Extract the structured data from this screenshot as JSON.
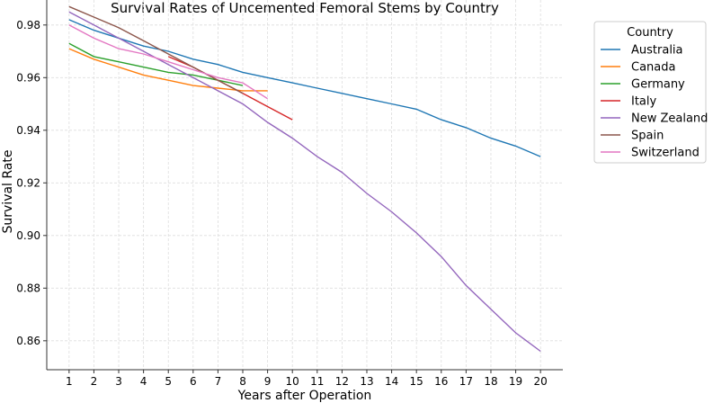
{
  "chart_data": {
    "type": "line",
    "title": "Survival Rates of Uncemented Femoral Stems by Country",
    "xlabel": "Years after Operation",
    "ylabel": "Survival Rate",
    "xlim": [
      0.1,
      20.9
    ],
    "ylim": [
      0.849,
      0.9895
    ],
    "xticks": [
      1,
      2,
      3,
      4,
      5,
      6,
      7,
      8,
      9,
      10,
      11,
      12,
      13,
      14,
      15,
      16,
      17,
      18,
      19,
      20
    ],
    "yticks": [
      0.86,
      0.88,
      0.9,
      0.92,
      0.94,
      0.96,
      0.98
    ],
    "ytick_labels": [
      "0.86",
      "0.88",
      "0.90",
      "0.92",
      "0.94",
      "0.96",
      "0.98"
    ],
    "grid": true,
    "legend_title": "Country",
    "legend_position": "outside-right",
    "series": [
      {
        "name": "Australia",
        "color": "#1f77b4",
        "x": [
          1,
          2,
          3,
          4,
          5,
          6,
          7,
          8,
          9,
          10,
          11,
          12,
          13,
          14,
          15,
          16,
          17,
          18,
          19,
          20
        ],
        "values": [
          0.982,
          0.978,
          0.975,
          0.972,
          0.97,
          0.967,
          0.965,
          0.962,
          0.96,
          0.958,
          0.956,
          0.954,
          0.952,
          0.95,
          0.948,
          0.944,
          0.941,
          0.937,
          0.934,
          0.93
        ]
      },
      {
        "name": "Canada",
        "color": "#ff7f0e",
        "x": [
          1,
          2,
          3,
          4,
          5,
          6,
          7,
          8,
          9
        ],
        "values": [
          0.971,
          0.967,
          0.964,
          0.961,
          0.959,
          0.957,
          0.956,
          0.955,
          0.955
        ]
      },
      {
        "name": "Germany",
        "color": "#2ca02c",
        "x": [
          1,
          2,
          3,
          4,
          5,
          6,
          7,
          8
        ],
        "values": [
          0.973,
          0.968,
          0.966,
          0.964,
          0.962,
          0.961,
          0.959,
          0.957
        ]
      },
      {
        "name": "Italy",
        "color": "#d62728",
        "x": [
          5,
          6,
          7,
          8,
          9,
          10
        ],
        "values": [
          0.968,
          0.964,
          0.959,
          0.954,
          0.949,
          0.944
        ]
      },
      {
        "name": "New Zealand",
        "color": "#9467bd",
        "x": [
          1,
          2,
          3,
          4,
          5,
          6,
          7,
          8,
          9,
          10,
          11,
          12,
          13,
          14,
          15,
          16,
          17,
          18,
          19,
          20
        ],
        "values": [
          0.985,
          0.98,
          0.975,
          0.97,
          0.965,
          0.96,
          0.955,
          0.95,
          0.943,
          0.937,
          0.93,
          0.924,
          0.916,
          0.909,
          0.901,
          0.892,
          0.881,
          0.872,
          0.863,
          0.856
        ]
      },
      {
        "name": "Spain",
        "color": "#8c564b",
        "x": [
          1,
          2,
          3,
          4,
          5,
          6,
          7,
          8
        ],
        "values": [
          0.987,
          0.983,
          0.979,
          0.974,
          0.969,
          0.964,
          0.959,
          0.954
        ]
      },
      {
        "name": "Switzerland",
        "color": "#e377c2",
        "x": [
          1,
          2,
          3,
          4,
          5,
          6,
          7,
          8,
          9
        ],
        "values": [
          0.98,
          0.975,
          0.971,
          0.969,
          0.966,
          0.963,
          0.96,
          0.958,
          0.952
        ]
      }
    ]
  }
}
